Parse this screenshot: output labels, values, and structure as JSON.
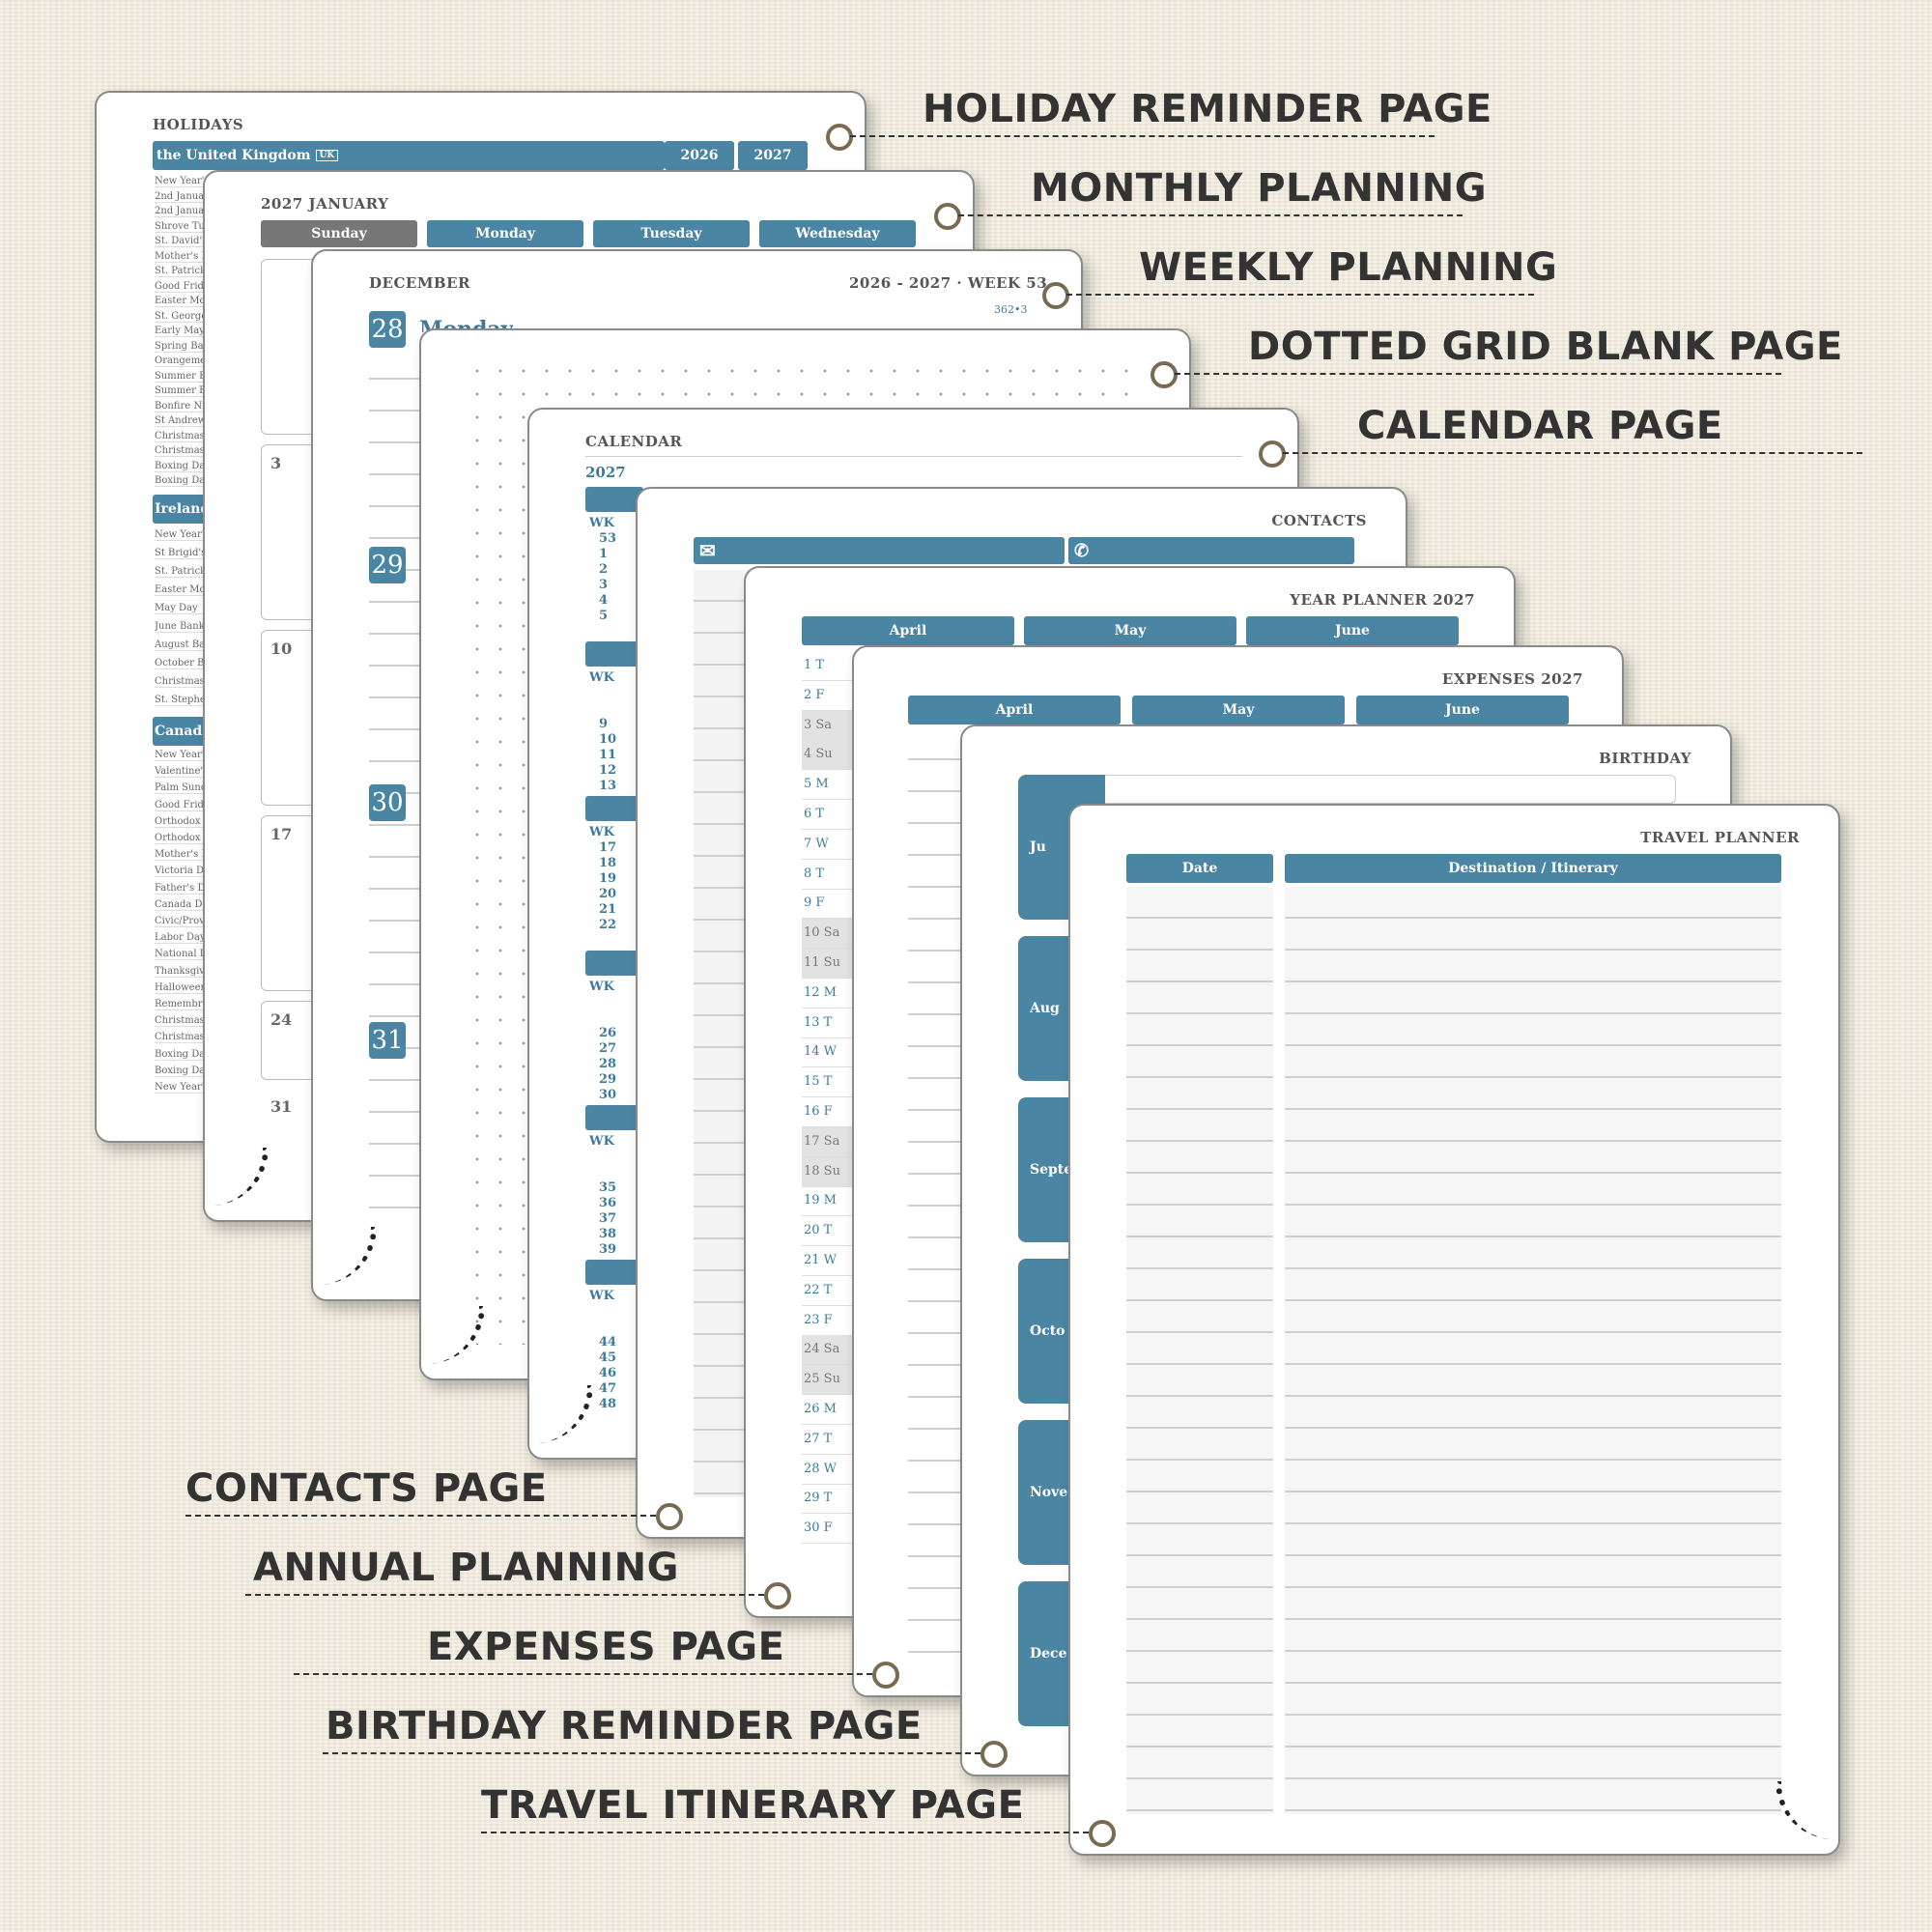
{
  "labels": {
    "holiday": "HOLIDAY REMINDER PAGE",
    "monthly": "MONTHLY PLANNING",
    "weekly": "WEEKLY PLANNING",
    "dotted": "DOTTED GRID BLANK PAGE",
    "calendar": "CALENDAR PAGE",
    "contacts": "CONTACTS PAGE",
    "annual": "ANNUAL PLANNING",
    "expenses": "EXPENSES PAGE",
    "birthday": "BIRTHDAY REMINDER PAGE",
    "travel": "TRAVEL ITINERARY PAGE"
  },
  "holidays": {
    "title": "HOLIDAYS",
    "uk": "the United Kingdom",
    "uk_badge": "UK",
    "col1": "2026",
    "col2": "2027",
    "ireland": "Ireland",
    "canada": "Canada",
    "uk_rows": [
      "New Year's D",
      "2nd Januar",
      "2nd Januar",
      "Shrove Tue",
      "St. David's",
      "Mother's D",
      "St. Patrick's",
      "Good Frida",
      "Easter Mon",
      "St. George'",
      "Early May B",
      "Spring Ban",
      "Orangemen",
      "Summer Ba",
      "Summer Ba",
      "Bonfire Nig",
      "St Andrew",
      "Christmas",
      "Christmas",
      "Boxing Day",
      "Boxing Day"
    ],
    "ie_rows": [
      "New Year's",
      "St Brigid's",
      "St. Patrick",
      "Easter Mon",
      "May Day",
      "June Bank",
      "August Ban",
      "October Ba",
      "Christmas",
      "St. Stephen"
    ],
    "ca_rows": [
      "New Year's",
      "Valentine's",
      "Palm Sunda",
      "Good Frida",
      "Orthodox E",
      "Orthodox E",
      "Mother's D",
      "Victoria Da",
      "Father's Da",
      "Canada Day",
      "Civic/Provi",
      "Labor Day",
      "National D",
      "Thanksgivi",
      "Halloween",
      "Remembra",
      "Christmas",
      "Christmas",
      "Boxing Day",
      "Boxing Day",
      "New Year's"
    ]
  },
  "monthly": {
    "title": "2027 JANUARY",
    "days": [
      "Sunday",
      "Monday",
      "Tuesday",
      "Wednesday"
    ],
    "nums": [
      "3",
      "10",
      "17",
      "24",
      "31"
    ]
  },
  "weekly": {
    "title": "DECEMBER",
    "week": "2026 - 2027 · WEEK 53",
    "sub": "362•3",
    "d1": "28",
    "d1name": "Monday",
    "d2": "29",
    "d3": "30",
    "d4": "31"
  },
  "calendar": {
    "title": "CALENDAR",
    "year": "2027",
    "wk": "WK",
    "groups": [
      [
        "53",
        "1",
        "2",
        "3",
        "4",
        "5"
      ],
      [
        "9",
        "10",
        "11",
        "12",
        "13"
      ],
      [
        "17",
        "18",
        "19",
        "20",
        "21",
        "22"
      ],
      [
        "26",
        "27",
        "28",
        "29",
        "30"
      ],
      [
        "35",
        "36",
        "37",
        "38",
        "39"
      ],
      [
        "44",
        "45",
        "46",
        "47",
        "48"
      ]
    ]
  },
  "contacts": {
    "title": "CONTACTS",
    "mail_icon": "envelope-icon",
    "phone_icon": "phone-icon"
  },
  "year": {
    "title": "YEAR PLANNER 2027",
    "months": [
      "April",
      "May",
      "June"
    ],
    "rows": [
      "1 T",
      "2 F",
      "3 Sa",
      "4 Su",
      "5 M",
      "6 T",
      "7 W",
      "8 T",
      "9 F",
      "10 Sa",
      "11 Su",
      "12 M",
      "13 T",
      "14 W",
      "15 T",
      "16 F",
      "17 Sa",
      "18 Su",
      "19 M",
      "20 T",
      "21 W",
      "22 T",
      "23 F",
      "24 Sa",
      "25 Su",
      "26 M",
      "27 T",
      "28 W",
      "29 T",
      "30 F"
    ]
  },
  "expenses": {
    "title": "EXPENSES 2027",
    "months": [
      "April",
      "May",
      "June"
    ]
  },
  "birthday": {
    "title": "BIRTHDAY",
    "months": [
      "Ju",
      "Aug",
      "Septe",
      "Octo",
      "Nove",
      "Dece"
    ]
  },
  "travel": {
    "title": "TRAVEL PLANNER",
    "date": "Date",
    "dest": "Destination / Itinerary"
  },
  "colors": {
    "accent": "#4a85a3",
    "label": "#333333",
    "ring": "#7a6a52"
  }
}
